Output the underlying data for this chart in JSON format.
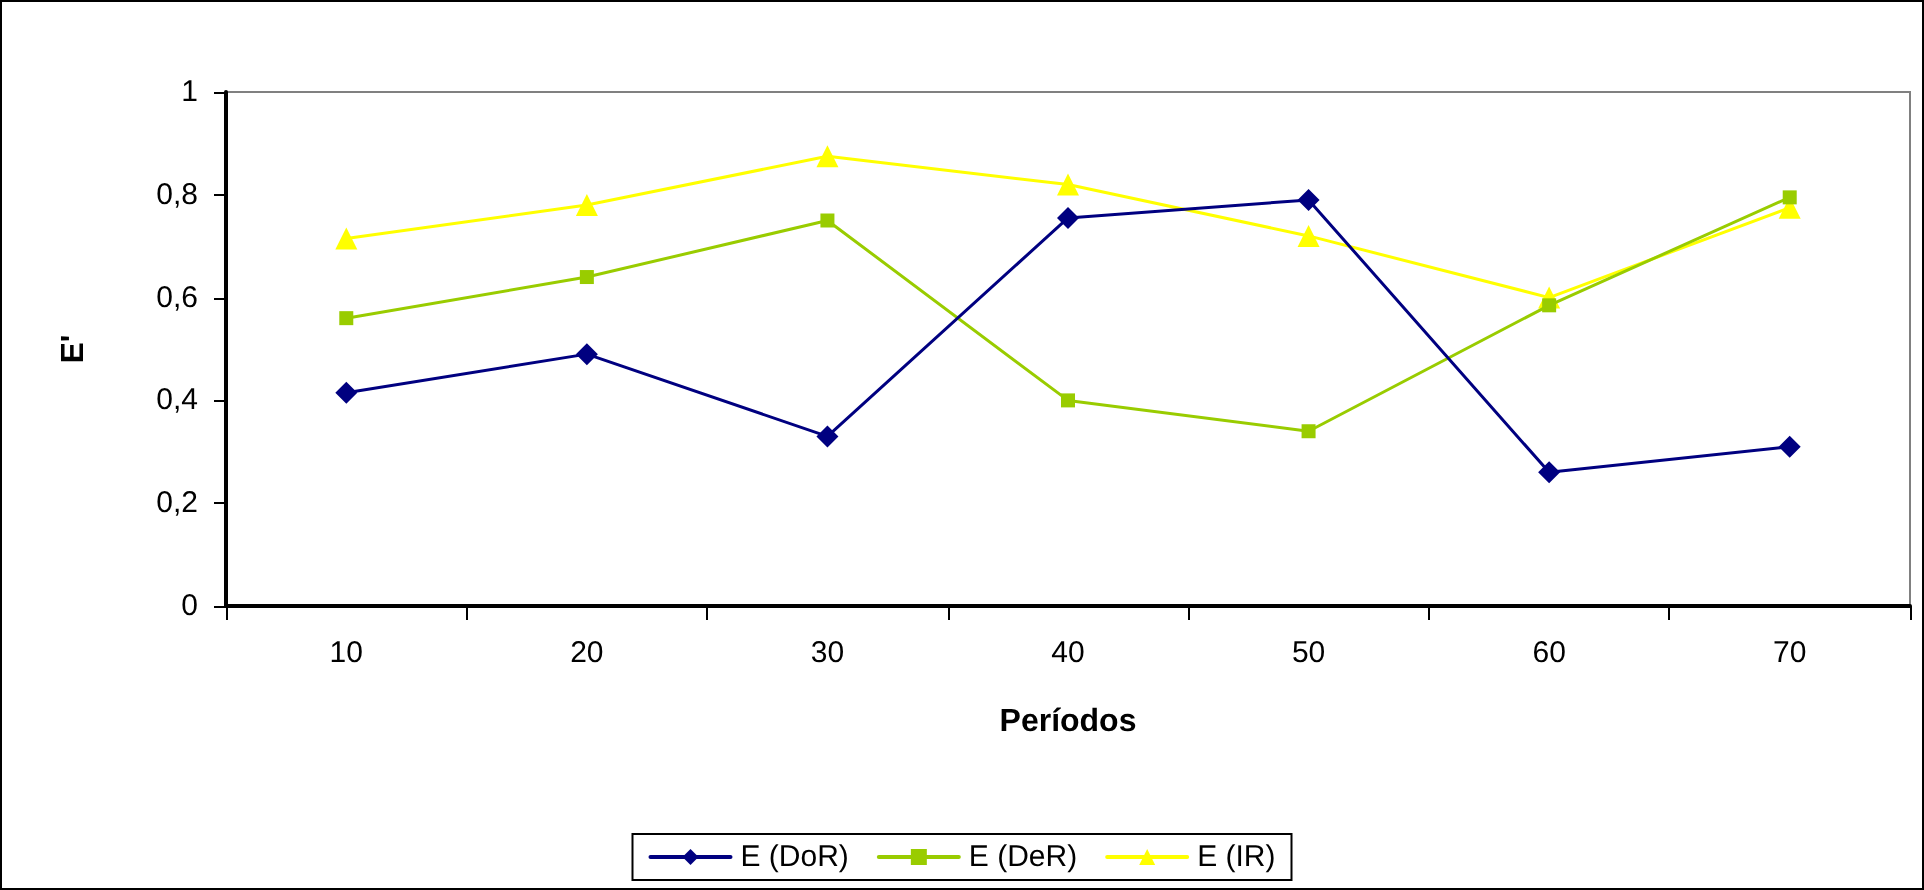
{
  "chart_data": {
    "type": "line",
    "xlabel": "Períodos",
    "ylabel": "E'",
    "categories": [
      "10",
      "20",
      "30",
      "40",
      "50",
      "60",
      "70"
    ],
    "series": [
      {
        "name": "E (DoR)",
        "color": "#000080",
        "marker": "diamond",
        "values": [
          0.415,
          0.49,
          0.33,
          0.755,
          0.79,
          0.26,
          0.31
        ]
      },
      {
        "name": "E (DeR)",
        "color": "#99cc00",
        "marker": "square",
        "values": [
          0.56,
          0.64,
          0.75,
          0.4,
          0.34,
          0.585,
          0.795
        ]
      },
      {
        "name": "E (IR)",
        "color": "#ffff00",
        "marker": "triangle",
        "values": [
          0.715,
          0.78,
          0.875,
          0.82,
          0.72,
          0.6,
          0.775
        ]
      }
    ],
    "ylim": [
      0,
      1
    ],
    "yticks": [
      0,
      {
        "value": 0.2,
        "label": "0,2"
      },
      {
        "value": 0.4,
        "label": "0,4"
      },
      {
        "value": 0.6,
        "label": "0,6"
      },
      {
        "value": 0.8,
        "label": "0,8"
      },
      1
    ],
    "grid": false,
    "legend": "bottom",
    "line_style": "solid"
  }
}
